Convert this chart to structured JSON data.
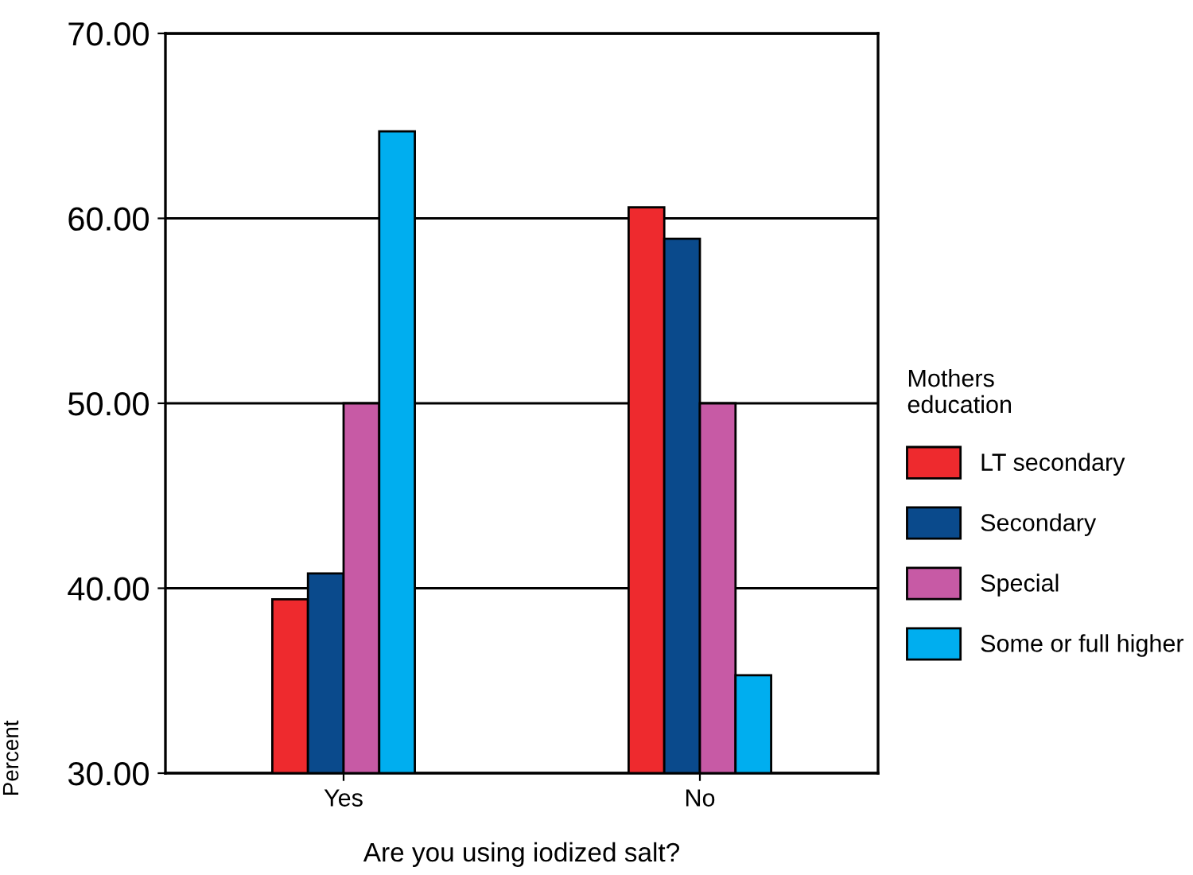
{
  "chart_data": {
    "type": "bar",
    "xlabel": "Are you using iodized salt?",
    "ylabel": "Percent",
    "legend_title": "Mothers\neducation",
    "categories": [
      "Yes",
      "No"
    ],
    "series": [
      {
        "name": "LT secondary",
        "color": "#ee2a2e",
        "values": [
          39.4,
          60.6
        ]
      },
      {
        "name": "Secondary",
        "color": "#0a4a8c",
        "values": [
          40.8,
          58.9
        ]
      },
      {
        "name": "Special",
        "color": "#c75aa5",
        "values": [
          50.0,
          50.0
        ]
      },
      {
        "name": "Some or full higher",
        "color": "#00aeef",
        "values": [
          64.7,
          35.3
        ]
      }
    ],
    "ylim": [
      30,
      70
    ],
    "yticks": [
      {
        "value": 30,
        "label": "30.00"
      },
      {
        "value": 40,
        "label": "40.00"
      },
      {
        "value": 50,
        "label": "50.00"
      },
      {
        "value": 60,
        "label": "60.00"
      },
      {
        "value": 70,
        "label": "70.00"
      }
    ],
    "grid": "y",
    "legend": "right"
  }
}
